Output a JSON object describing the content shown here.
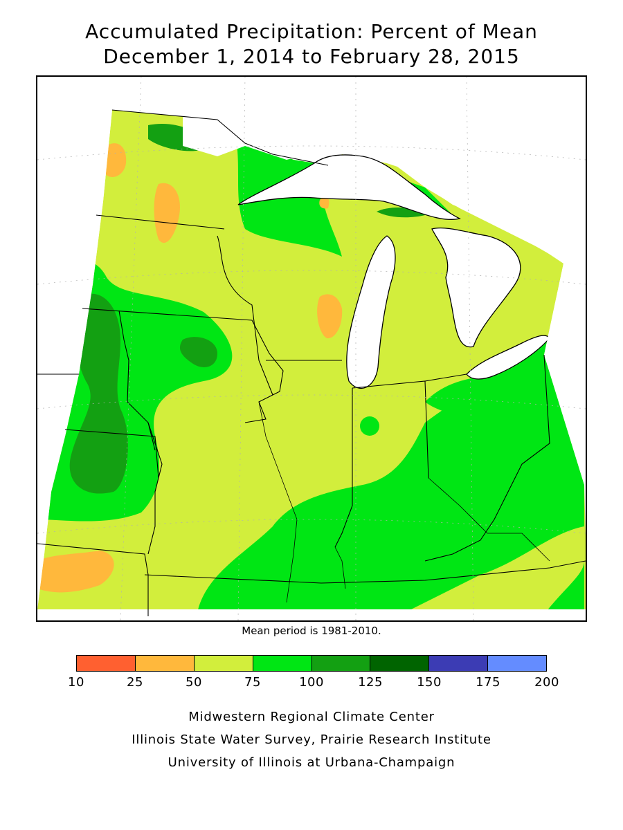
{
  "title": {
    "line1": "Accumulated Precipitation: Percent of Mean",
    "line2": "December 1, 2014 to February 28, 2015"
  },
  "map": {
    "region": "Upper Midwest and Great Lakes",
    "variable": "Percent of Mean"
  },
  "mean_period": "Mean period is 1981-2010.",
  "legend": {
    "bins": [
      {
        "range": "10-25",
        "color": "#ff6030"
      },
      {
        "range": "25-50",
        "color": "#ffb83c"
      },
      {
        "range": "50-75",
        "color": "#d2ee3c"
      },
      {
        "range": "75-100",
        "color": "#00e614"
      },
      {
        "range": "100-125",
        "color": "#13a012"
      },
      {
        "range": "125-150",
        "color": "#006400"
      },
      {
        "range": "150-175",
        "color": "#3c3cb4"
      },
      {
        "range": "175-200",
        "color": "#648cff"
      }
    ],
    "ticks": [
      "10",
      "25",
      "50",
      "75",
      "100",
      "125",
      "150",
      "175",
      "200"
    ]
  },
  "credits": [
    "Midwestern Regional Climate Center",
    "Illinois State Water Survey, Prairie Research Institute",
    "University of Illinois at Urbana-Champaign"
  ]
}
